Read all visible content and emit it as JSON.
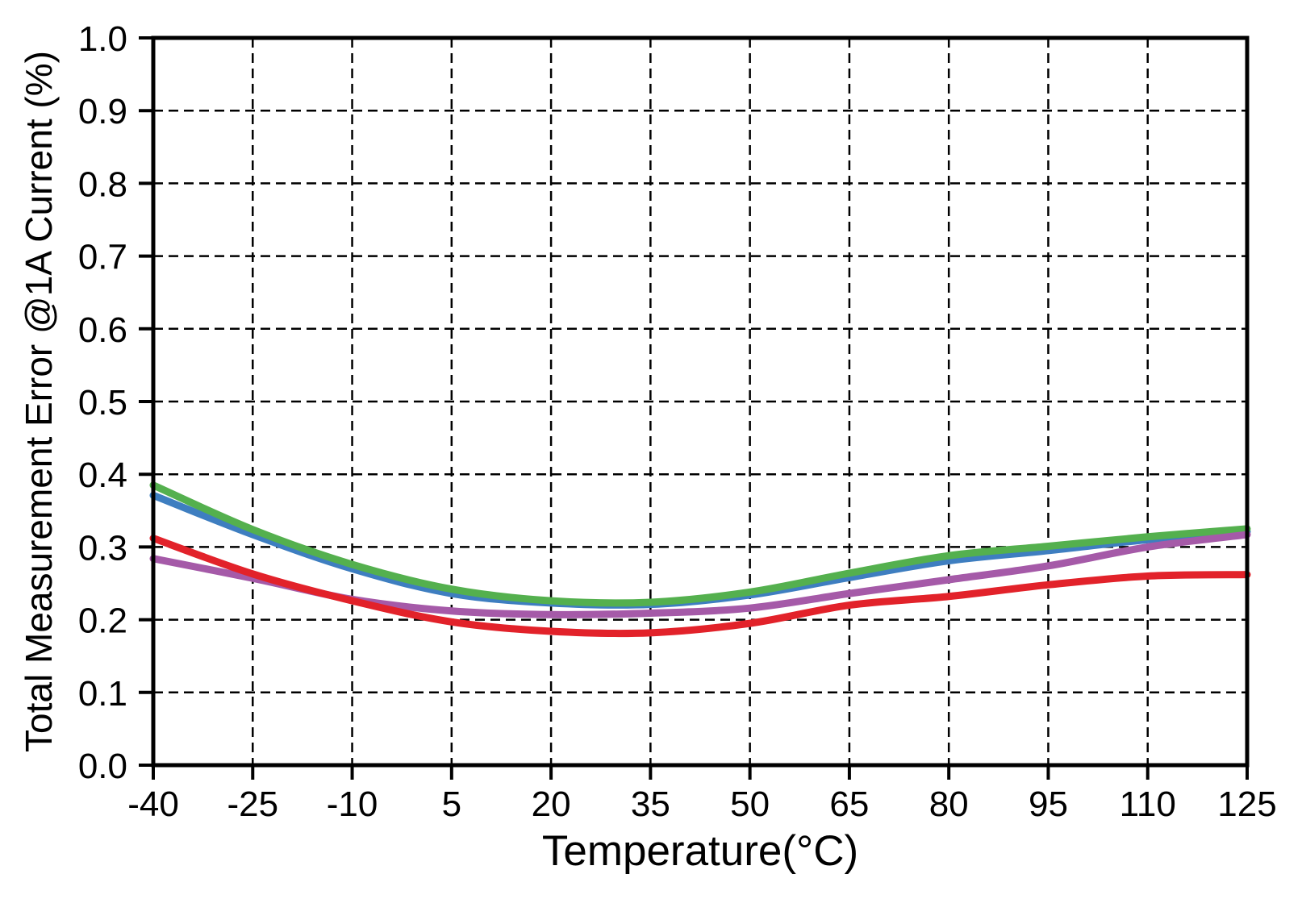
{
  "figure": {
    "background": "#ffffff",
    "axis_color": "#000000",
    "grid_color": "#000000"
  },
  "chart_data": {
    "type": "line",
    "title": "",
    "xlabel": "Temperature(°C)",
    "ylabel": "Total Measurement Error @1A Current (%)",
    "xlim": [
      -40,
      125
    ],
    "ylim": [
      0.0,
      1.0
    ],
    "grid": "dashed",
    "legend": "none",
    "x": [
      -40,
      -25,
      -10,
      5,
      20,
      35,
      50,
      65,
      80,
      95,
      110,
      125
    ],
    "x_tick_labels": [
      "-40",
      "-25",
      "-10",
      "5",
      "20",
      "35",
      "50",
      "65",
      "80",
      "95",
      "110",
      "125"
    ],
    "y_ticks": [
      0.0,
      0.1,
      0.2,
      0.3,
      0.4,
      0.5,
      0.6,
      0.7,
      0.8,
      0.9,
      1.0
    ],
    "y_tick_labels": [
      "0.0",
      "0.1",
      "0.2",
      "0.3",
      "0.4",
      "0.5",
      "0.6",
      "0.7",
      "0.8",
      "0.9",
      "1.0"
    ],
    "series": [
      {
        "id": "blue-series",
        "color": "#3E7EC0",
        "values": [
          0.371,
          0.317,
          0.27,
          0.236,
          0.223,
          0.221,
          0.234,
          0.258,
          0.281,
          0.295,
          0.31,
          0.321
        ]
      },
      {
        "id": "green-series",
        "color": "#54B04E",
        "values": [
          0.385,
          0.324,
          0.276,
          0.242,
          0.226,
          0.224,
          0.238,
          0.264,
          0.288,
          0.301,
          0.314,
          0.325
        ]
      },
      {
        "id": "purple-series",
        "color": "#A55AA8",
        "values": [
          0.284,
          0.257,
          0.228,
          0.212,
          0.207,
          0.209,
          0.216,
          0.236,
          0.255,
          0.274,
          0.3,
          0.317
        ]
      },
      {
        "id": "red-series",
        "color": "#E2222A",
        "values": [
          0.312,
          0.263,
          0.226,
          0.197,
          0.184,
          0.182,
          0.195,
          0.22,
          0.232,
          0.248,
          0.26,
          0.262
        ]
      }
    ]
  }
}
